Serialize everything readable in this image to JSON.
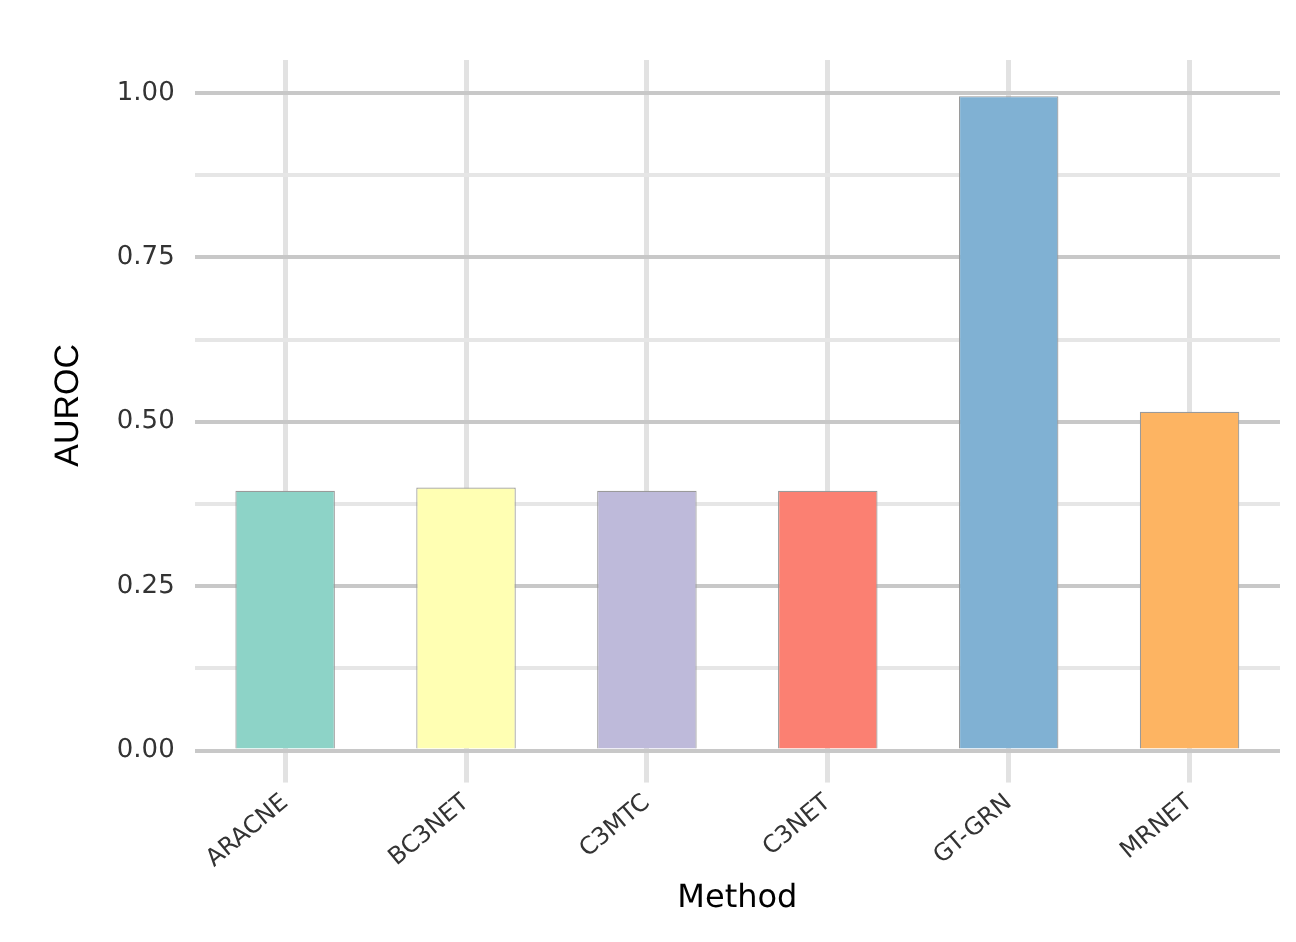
{
  "chart_data": {
    "type": "bar",
    "xlabel": "Method",
    "ylabel": "AUROC",
    "categories": [
      "ARACNE",
      "BC3NET",
      "C3MTC",
      "C3NET",
      "GT-GRN",
      "MRNET"
    ],
    "values": [
      0.395,
      0.4,
      0.395,
      0.395,
      0.995,
      0.515
    ],
    "colors": [
      "#8dd3c7",
      "#ffffb3",
      "#bebada",
      "#fb8072",
      "#80b1d3",
      "#fdb462"
    ],
    "ylim": [
      0,
      1.05
    ],
    "yticks": [
      "0.00",
      {
        "value": 0.125,
        "label": null
      },
      {
        "value": 0.25,
        "label": "0.25"
      },
      {
        "value": 0.375,
        "label": null
      },
      {
        "value": 0.5,
        "label": "0.50"
      },
      {
        "value": 0.625,
        "label": null
      },
      {
        "value": 0.75,
        "label": "0.75"
      },
      {
        "value": 0.875,
        "label": null
      },
      {
        "value": 1,
        "label": "1.00"
      }
    ],
    "grid": true,
    "legend": false
  }
}
